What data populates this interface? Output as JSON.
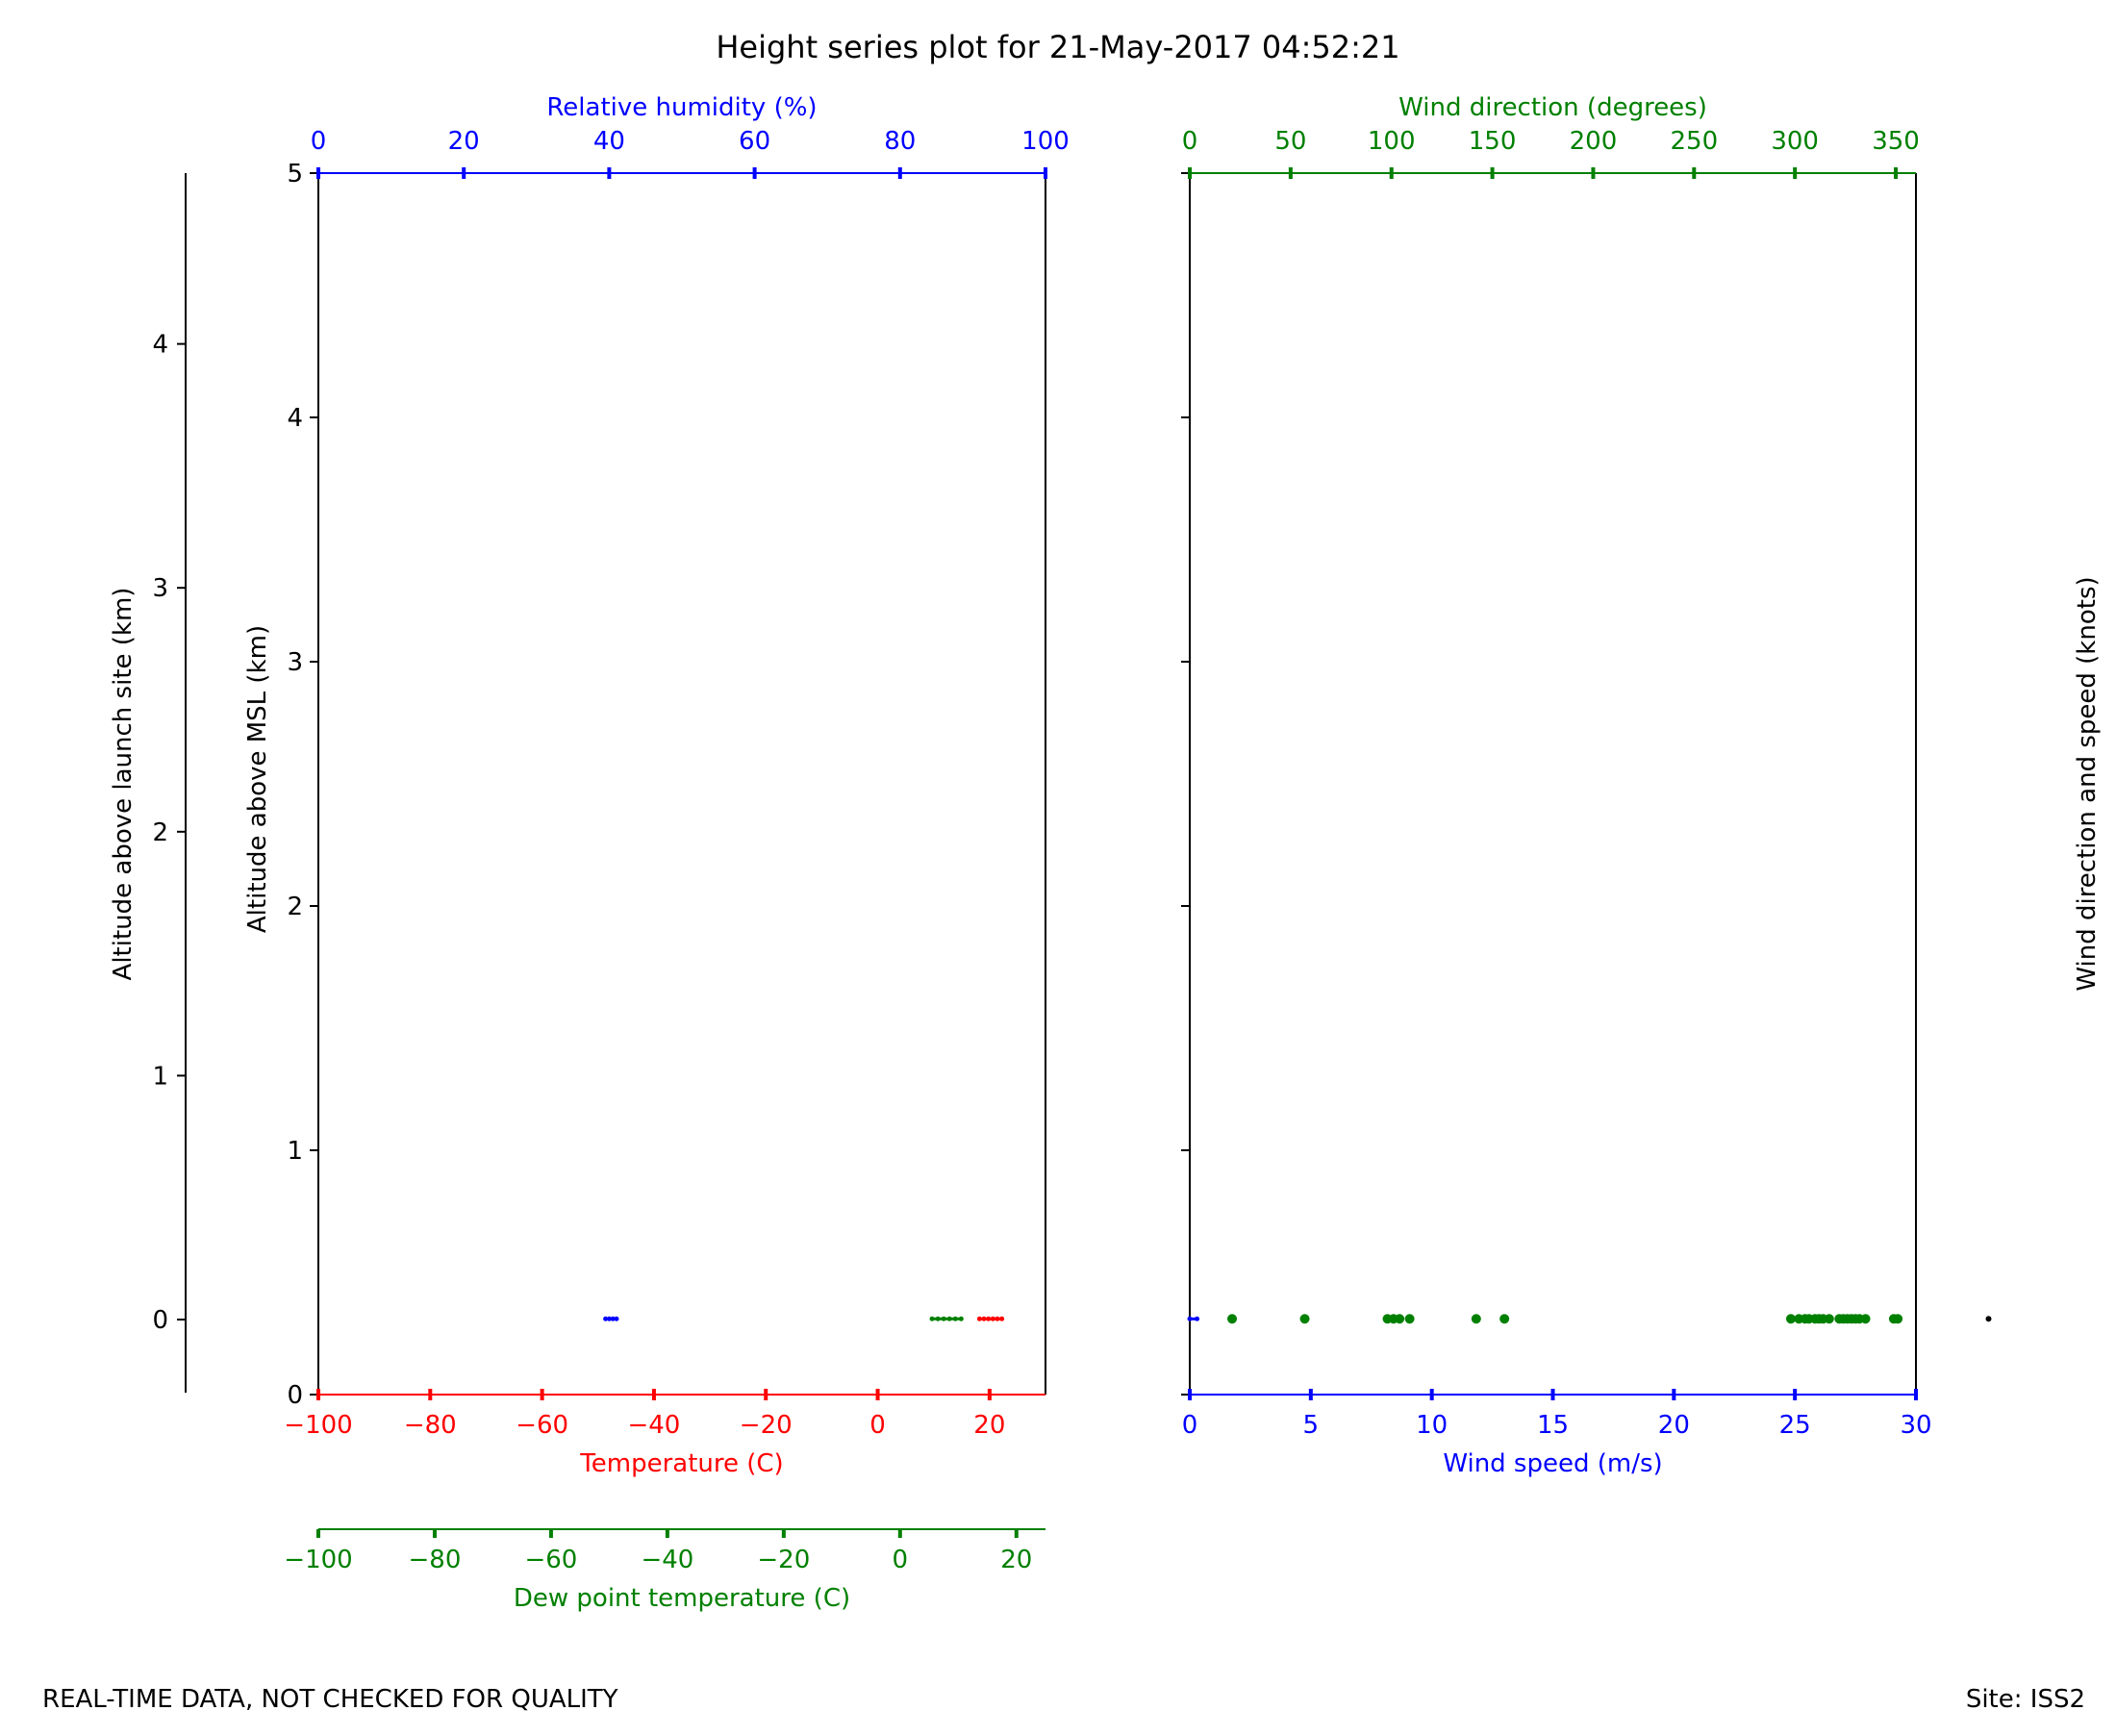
{
  "title": "Height series plot for 21-May-2017 04:52:21",
  "footer_left": "REAL-TIME DATA, NOT CHECKED FOR QUALITY",
  "footer_right": "Site: ISS2",
  "colors": {
    "temperature": "#ff0000",
    "dewpoint": "#008000",
    "humidity": "#0000ff",
    "wind_direction": "#008000",
    "wind_speed": "#0000ff",
    "axis": "#000000"
  },
  "chart_data": [
    {
      "type": "line",
      "panel": "thermo",
      "y_axes": {
        "msl": {
          "label": "Altitude above MSL (km)",
          "lim": [
            0,
            5
          ],
          "ticks": [
            0,
            1,
            2,
            3,
            4,
            5
          ],
          "tick_labels": [
            "0",
            "1",
            "2",
            "3",
            "4",
            "5"
          ]
        },
        "launch_site": {
          "label": "Altitude above launch site (km)",
          "ticks": [
            0,
            1,
            2,
            3,
            4
          ],
          "tick_labels": [
            "0",
            "1",
            "2",
            "3",
            "4"
          ]
        }
      },
      "x_axes": {
        "temperature": {
          "label": "Temperature (C)",
          "lim": [
            -100,
            30
          ],
          "ticks": [
            -100,
            -80,
            -60,
            -40,
            -20,
            0,
            20
          ],
          "tick_labels": [
            "−100",
            "−80",
            "−60",
            "−40",
            "−20",
            "0",
            "20"
          ]
        },
        "humidity": {
          "label": "Relative humidity (%)",
          "lim": [
            0,
            100
          ],
          "ticks": [
            0,
            20,
            40,
            60,
            80,
            100
          ],
          "tick_labels": [
            "0",
            "20",
            "40",
            "60",
            "80",
            "100"
          ]
        },
        "dewpoint": {
          "label": "Dew point temperature (C)",
          "lim": [
            -100,
            25
          ],
          "ticks": [
            -100,
            -80,
            -60,
            -40,
            -20,
            0,
            20
          ],
          "tick_labels": [
            "−100",
            "−80",
            "−60",
            "−40",
            "−20",
            "0",
            "20"
          ]
        }
      },
      "series": [
        {
          "axis": "temperature",
          "x": [
            18.2,
            19.0,
            19.8,
            20.6,
            21.4,
            22.2
          ],
          "y": [
            0.31,
            0.31,
            0.31,
            0.31,
            0.31,
            0.31
          ]
        },
        {
          "axis": "dewpoint",
          "x": [
            5.5,
            6.5,
            7.5,
            8.5,
            9.5,
            10.5
          ],
          "y": [
            0.31,
            0.31,
            0.31,
            0.31,
            0.31,
            0.31
          ]
        },
        {
          "axis": "humidity",
          "x": [
            39.5,
            40.0,
            40.5,
            41.0
          ],
          "y": [
            0.31,
            0.31,
            0.31,
            0.31
          ]
        }
      ]
    },
    {
      "type": "scatter",
      "panel": "wind",
      "y_axes": {
        "msl": {
          "lim": [
            0,
            5
          ],
          "ticks": [
            0,
            1,
            2,
            3,
            4,
            5
          ]
        },
        "right_label": "Wind direction and speed (knots)"
      },
      "x_axes": {
        "wind_speed": {
          "label": "Wind speed (m/s)",
          "lim": [
            0,
            30
          ],
          "ticks": [
            0,
            5,
            10,
            15,
            20,
            25,
            30
          ],
          "tick_labels": [
            "0",
            "5",
            "10",
            "15",
            "20",
            "25",
            "30"
          ]
        },
        "wind_direction": {
          "label": "Wind direction (degrees)",
          "lim": [
            0,
            360
          ],
          "ticks": [
            0,
            50,
            100,
            150,
            200,
            250,
            300,
            350
          ],
          "tick_labels": [
            "0",
            "50",
            "100",
            "150",
            "200",
            "250",
            "300",
            "350"
          ]
        }
      },
      "series": [
        {
          "axis": "wind_direction",
          "x": [
            21,
            57,
            98,
            101,
            104,
            109,
            142,
            156,
            298,
            302,
            305,
            307,
            310,
            312,
            314,
            317,
            322,
            324,
            326,
            328,
            330,
            332,
            335,
            349,
            351
          ],
          "y": [
            0.31,
            0.31,
            0.31,
            0.31,
            0.31,
            0.31,
            0.31,
            0.31,
            0.31,
            0.31,
            0.31,
            0.31,
            0.31,
            0.31,
            0.31,
            0.31,
            0.31,
            0.31,
            0.31,
            0.31,
            0.31,
            0.31,
            0.31,
            0.31,
            0.31
          ]
        },
        {
          "axis": "wind_speed",
          "x": [
            0.0,
            0.3
          ],
          "y": [
            0.31,
            0.31
          ]
        },
        {
          "axis": "barb",
          "x": [
            33.0
          ],
          "y": [
            0.31
          ]
        }
      ]
    }
  ]
}
